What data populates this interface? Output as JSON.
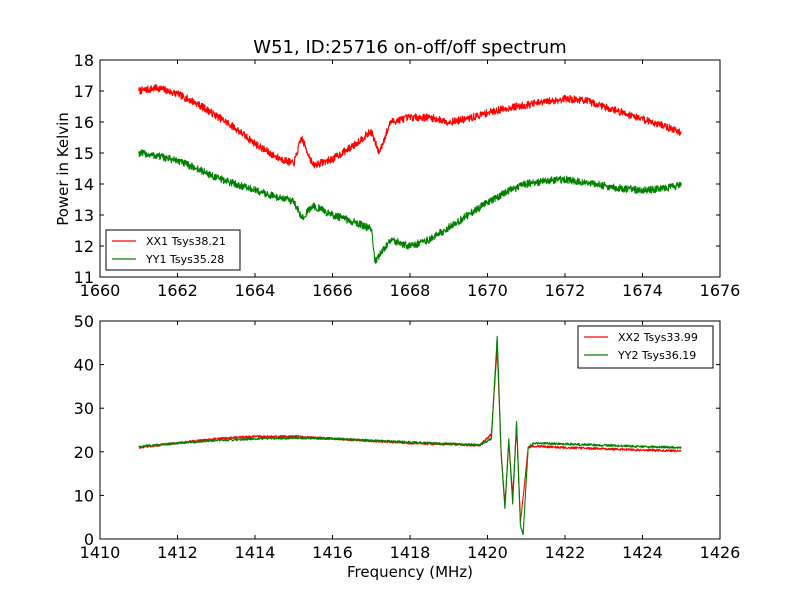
{
  "chart_data": [
    {
      "type": "line",
      "title": "W51, ID:25716 on-off/off spectrum",
      "xlabel": "",
      "ylabel": "Power in Kelvin",
      "xlim": [
        1660,
        1676
      ],
      "ylim": [
        11,
        18
      ],
      "xticks": [
        1660,
        1662,
        1664,
        1666,
        1668,
        1670,
        1672,
        1674,
        1676
      ],
      "yticks": [
        11,
        12,
        13,
        14,
        15,
        16,
        17,
        18
      ],
      "grid": false,
      "legend": "lower left",
      "series": [
        {
          "name": "XX1 Tsys38.21",
          "color": "#ff0000",
          "x": [
            1661.0,
            1661.5,
            1662.0,
            1662.5,
            1663.0,
            1663.5,
            1664.0,
            1664.5,
            1665.0,
            1665.2,
            1665.5,
            1666.0,
            1666.5,
            1667.0,
            1667.2,
            1667.5,
            1668.0,
            1668.5,
            1669.0,
            1669.5,
            1670.0,
            1670.5,
            1671.0,
            1671.5,
            1672.0,
            1672.5,
            1673.0,
            1673.5,
            1674.0,
            1674.5,
            1675.0
          ],
          "y": [
            17.0,
            17.1,
            16.9,
            16.6,
            16.2,
            15.8,
            15.3,
            14.9,
            14.65,
            15.5,
            14.6,
            14.8,
            15.2,
            15.7,
            15.0,
            16.0,
            16.15,
            16.15,
            16.0,
            16.1,
            16.3,
            16.45,
            16.55,
            16.65,
            16.75,
            16.7,
            16.5,
            16.3,
            16.1,
            15.9,
            15.65
          ]
        },
        {
          "name": "YY1 Tsys35.28",
          "color": "#008000",
          "x": [
            1661.0,
            1661.5,
            1662.0,
            1662.5,
            1663.0,
            1663.5,
            1664.0,
            1664.5,
            1665.0,
            1665.2,
            1665.5,
            1666.0,
            1666.5,
            1667.0,
            1667.1,
            1667.5,
            1668.0,
            1668.5,
            1669.0,
            1669.5,
            1670.0,
            1670.5,
            1671.0,
            1671.5,
            1672.0,
            1672.5,
            1673.0,
            1673.5,
            1674.0,
            1674.5,
            1675.0
          ],
          "y": [
            15.0,
            14.9,
            14.75,
            14.5,
            14.2,
            14.0,
            13.8,
            13.6,
            13.45,
            12.9,
            13.3,
            13.0,
            12.8,
            12.55,
            11.5,
            12.2,
            12.0,
            12.2,
            12.6,
            13.0,
            13.4,
            13.75,
            14.0,
            14.1,
            14.15,
            14.05,
            13.95,
            13.85,
            13.8,
            13.85,
            13.95
          ]
        }
      ]
    },
    {
      "type": "line",
      "title": "",
      "xlabel": "Frequency (MHz)",
      "ylabel": "",
      "xlim": [
        1410,
        1426
      ],
      "ylim": [
        0,
        50
      ],
      "xticks": [
        1410,
        1412,
        1414,
        1416,
        1418,
        1420,
        1422,
        1424,
        1426
      ],
      "yticks": [
        0,
        10,
        20,
        30,
        40,
        50
      ],
      "grid": false,
      "legend": "upper right",
      "series": [
        {
          "name": "XX2 Tsys33.99",
          "color": "#ff0000",
          "x": [
            1411.0,
            1412.0,
            1413.0,
            1414.0,
            1415.0,
            1416.0,
            1417.0,
            1418.0,
            1419.0,
            1419.8,
            1420.1,
            1420.25,
            1420.35,
            1420.45,
            1420.55,
            1420.65,
            1420.75,
            1420.85,
            1420.95,
            1421.05,
            1421.2,
            1422.0,
            1423.0,
            1424.0,
            1425.0
          ],
          "y": [
            21.0,
            22.0,
            23.0,
            23.5,
            23.5,
            23.0,
            22.5,
            22.0,
            21.7,
            21.5,
            24.0,
            44.0,
            20.0,
            8.0,
            22.0,
            10.0,
            26.0,
            4.0,
            12.0,
            21.0,
            21.3,
            21.0,
            20.7,
            20.4,
            20.2
          ]
        },
        {
          "name": "YY2 Tsys36.19",
          "color": "#008000",
          "x": [
            1411.0,
            1412.0,
            1413.0,
            1414.0,
            1415.0,
            1416.0,
            1417.0,
            1418.0,
            1419.0,
            1419.8,
            1420.1,
            1420.25,
            1420.35,
            1420.45,
            1420.55,
            1420.65,
            1420.75,
            1420.85,
            1420.92,
            1421.05,
            1421.2,
            1422.0,
            1423.0,
            1424.0,
            1425.0
          ],
          "y": [
            21.2,
            22.0,
            22.6,
            23.0,
            23.2,
            23.0,
            22.6,
            22.2,
            21.8,
            21.6,
            23.0,
            46.5,
            20.0,
            7.0,
            23.0,
            8.0,
            27.0,
            3.0,
            1.0,
            21.0,
            22.0,
            21.8,
            21.5,
            21.2,
            21.0
          ]
        }
      ]
    }
  ]
}
